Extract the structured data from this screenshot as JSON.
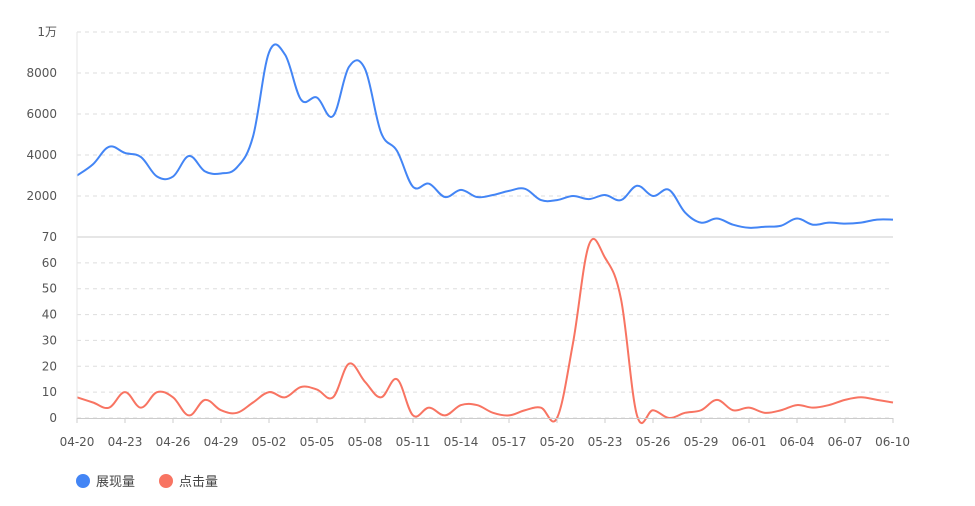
{
  "chart_data": [
    {
      "type": "line",
      "panel": "top",
      "categories": [
        "04-20",
        "04-21",
        "04-22",
        "04-23",
        "04-24",
        "04-25",
        "04-26",
        "04-27",
        "04-28",
        "04-29",
        "04-30",
        "05-01",
        "05-02",
        "05-03",
        "05-04",
        "05-05",
        "05-06",
        "05-07",
        "05-08",
        "05-09",
        "05-10",
        "05-11",
        "05-12",
        "05-13",
        "05-14",
        "05-15",
        "05-16",
        "05-17",
        "05-18",
        "05-19",
        "05-20",
        "05-21",
        "05-22",
        "05-23",
        "05-24",
        "05-25",
        "05-26",
        "05-27",
        "05-28",
        "05-29",
        "05-30",
        "05-31",
        "06-01",
        "06-02",
        "06-03",
        "06-04",
        "06-05",
        "06-06",
        "06-07",
        "06-08",
        "06-09",
        "06-10"
      ],
      "series": [
        {
          "name": "展现量",
          "color": "#4385f5",
          "values": [
            3000,
            3550,
            4400,
            4100,
            3900,
            2950,
            2950,
            3950,
            3200,
            3100,
            3400,
            4900,
            9000,
            8900,
            6700,
            6800,
            5900,
            8300,
            8200,
            5100,
            4200,
            2450,
            2600,
            1950,
            2300,
            1950,
            2050,
            2250,
            2350,
            1800,
            1800,
            2000,
            1850,
            2050,
            1800,
            2500,
            2000,
            2300,
            1200,
            700,
            900,
            600,
            450,
            500,
            550,
            900,
            600,
            700,
            650,
            700,
            850,
            850
          ]
        }
      ],
      "y_ticks": [
        "2000",
        "4000",
        "6000",
        "8000",
        "1万"
      ],
      "ylim": [
        0,
        10000
      ],
      "x_tick_labels": [
        "04-20",
        "04-23",
        "04-26",
        "04-29",
        "05-02",
        "05-05",
        "05-08",
        "05-11",
        "05-14",
        "05-17",
        "05-20",
        "05-23",
        "05-26",
        "05-29",
        "06-01",
        "06-04",
        "06-07",
        "06-10"
      ]
    },
    {
      "type": "line",
      "panel": "bottom",
      "categories": [
        "04-20",
        "04-21",
        "04-22",
        "04-23",
        "04-24",
        "04-25",
        "04-26",
        "04-27",
        "04-28",
        "04-29",
        "04-30",
        "05-01",
        "05-02",
        "05-03",
        "05-04",
        "05-05",
        "05-06",
        "05-07",
        "05-08",
        "05-09",
        "05-10",
        "05-11",
        "05-12",
        "05-13",
        "05-14",
        "05-15",
        "05-16",
        "05-17",
        "05-18",
        "05-19",
        "05-20",
        "05-21",
        "05-22",
        "05-23",
        "05-24",
        "05-25",
        "05-26",
        "05-27",
        "05-28",
        "05-29",
        "05-30",
        "05-31",
        "06-01",
        "06-02",
        "06-03",
        "06-04",
        "06-05",
        "06-06",
        "06-07",
        "06-08",
        "06-09",
        "06-10"
      ],
      "series": [
        {
          "name": "点击量",
          "color": "#f87462",
          "values": [
            8,
            6,
            4,
            10,
            4,
            10,
            8,
            1,
            7,
            3,
            2,
            6,
            10,
            8,
            12,
            11,
            8,
            21,
            14,
            8,
            15,
            1,
            4,
            1,
            5,
            5,
            2,
            1,
            3,
            4,
            0,
            29,
            67,
            62,
            46,
            1,
            3,
            0,
            2,
            3,
            7,
            3,
            4,
            2,
            3,
            5,
            4,
            5,
            7,
            8,
            7,
            6
          ]
        }
      ],
      "y_ticks": [
        "0",
        "10",
        "20",
        "30",
        "40",
        "50",
        "60",
        "70"
      ],
      "ylim": [
        0,
        70
      ],
      "x_tick_labels": [
        "04-20",
        "04-23",
        "04-26",
        "04-29",
        "05-02",
        "05-05",
        "05-08",
        "05-11",
        "05-14",
        "05-17",
        "05-20",
        "05-23",
        "05-26",
        "05-29",
        "06-01",
        "06-04",
        "06-07",
        "06-10"
      ]
    }
  ],
  "legend": [
    {
      "label": "展现量",
      "color": "#4385f5"
    },
    {
      "label": "点击量",
      "color": "#f87462"
    }
  ]
}
